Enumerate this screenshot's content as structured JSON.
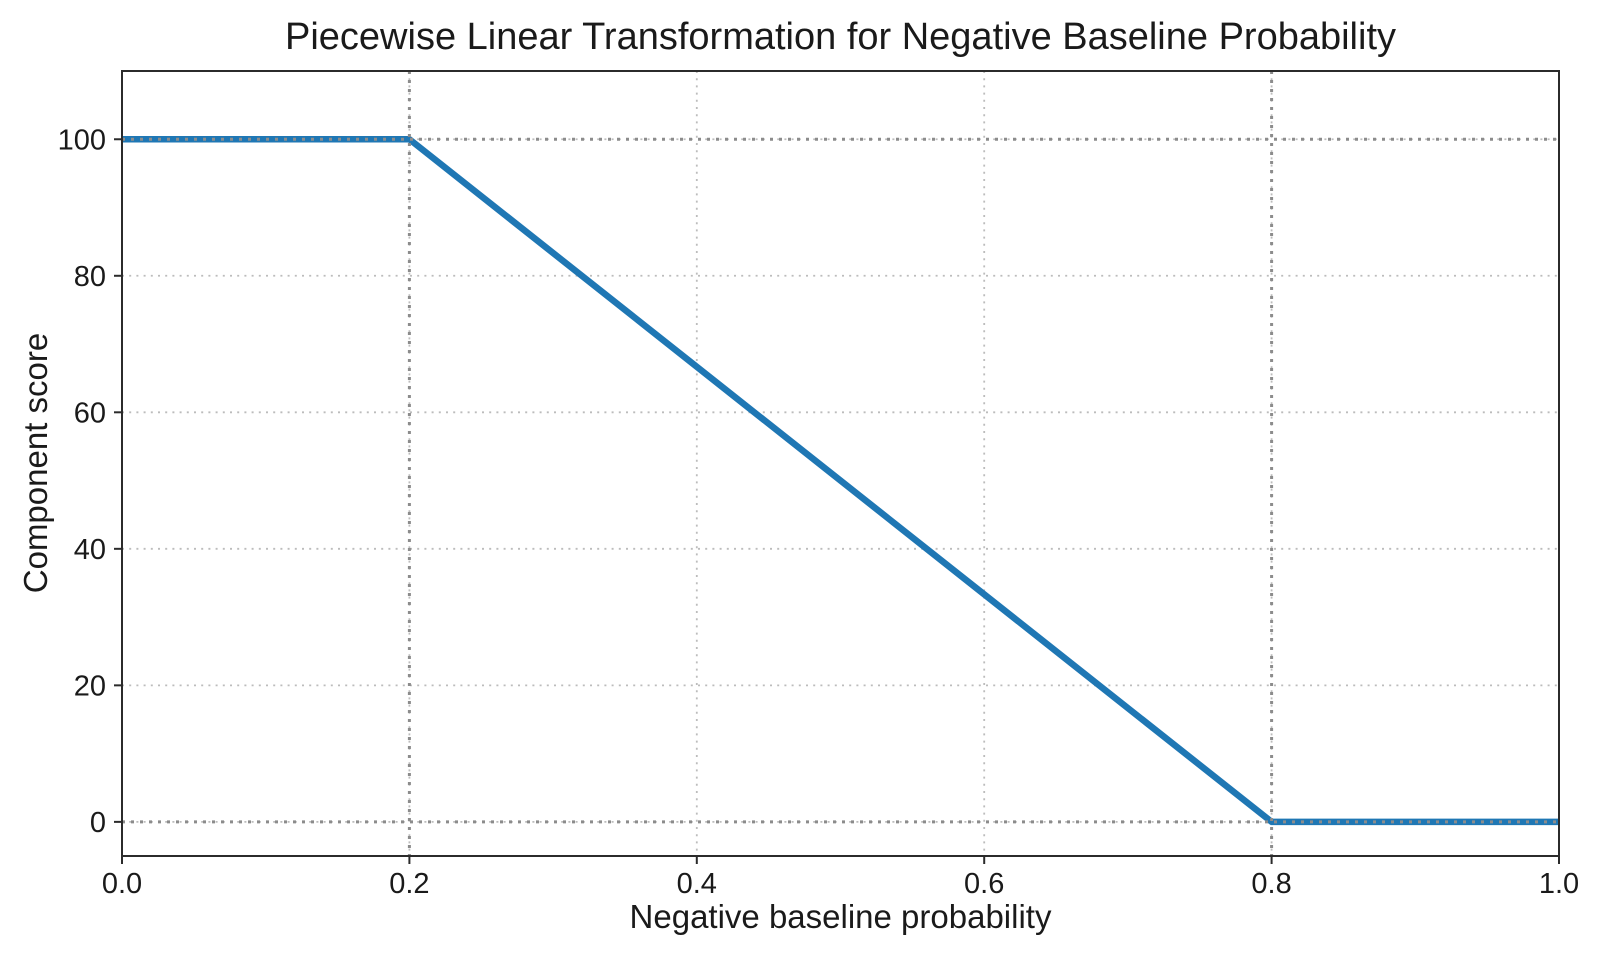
{
  "chart_data": {
    "type": "line",
    "title": "Piecewise Linear Transformation for Negative Baseline Probability",
    "xlabel": "Negative baseline probability",
    "ylabel": "Component score",
    "xlim": [
      0.0,
      1.0
    ],
    "ylim": [
      -5,
      110
    ],
    "x_ticks": [
      0.0,
      0.2,
      0.4,
      0.6,
      0.8,
      1.0
    ],
    "x_tick_labels": [
      "0.0",
      "0.2",
      "0.4",
      "0.6",
      "0.8",
      "1.0"
    ],
    "y_ticks": [
      0,
      20,
      40,
      60,
      80,
      100
    ],
    "y_tick_labels": [
      "0",
      "20",
      "40",
      "60",
      "80",
      "100"
    ],
    "grid": {
      "on": true,
      "linestyle": "dotted",
      "color": "#bcbcbc"
    },
    "reference_lines": {
      "x": [
        0.2,
        0.8
      ],
      "y": [
        0,
        100
      ],
      "linestyle": "dotted",
      "color": "#8c8c8c"
    },
    "series": [
      {
        "name": "component-score-curve",
        "x": [
          0.0,
          0.2,
          0.8,
          1.0
        ],
        "y": [
          100,
          100,
          0,
          0
        ],
        "color": "#1f77b4",
        "linewidth": 6.5
      }
    ],
    "legend": {
      "visible": false
    },
    "colors": {
      "line": "#1f77b4",
      "grid": "#bcbcbc",
      "reference": "#8c8c8c",
      "spine": "#2b2b2b",
      "text": "#1a1a1a",
      "background": "#ffffff"
    }
  }
}
